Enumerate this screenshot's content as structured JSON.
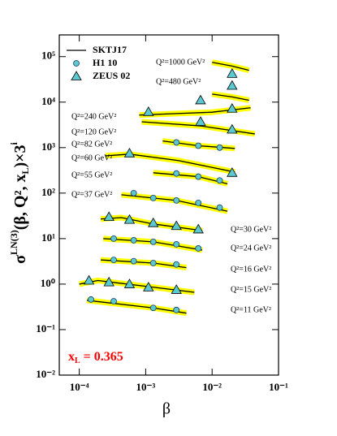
{
  "chart_data": {
    "type": "scatter",
    "xscale": "log",
    "yscale": "log",
    "xlabel": "β",
    "ylabel_parts": [
      "σ",
      "LN(3)",
      "(β, Q², x",
      "L",
      ")×3",
      "i"
    ],
    "annotation_parts": [
      "x",
      "L",
      " = 0.365"
    ],
    "annotation_color": "#ff0000",
    "xlim": [
      5e-05,
      0.1
    ],
    "ylim": [
      0.01,
      300000
    ],
    "xticks": [
      {
        "value": 0.0001,
        "label": "10⁻⁴"
      },
      {
        "value": 0.001,
        "label": "10⁻³"
      },
      {
        "value": 0.01,
        "label": "10⁻²"
      },
      {
        "value": 0.1,
        "label": "10⁻¹"
      }
    ],
    "yticks": [
      {
        "value": 0.01,
        "label": "10⁻²"
      },
      {
        "value": 0.1,
        "label": "10⁻¹"
      },
      {
        "value": 1,
        "label": "10⁰"
      },
      {
        "value": 10,
        "label": "10¹"
      },
      {
        "value": 100,
        "label": "10²"
      },
      {
        "value": 1000,
        "label": "10³"
      },
      {
        "value": 10000,
        "label": "10⁴"
      },
      {
        "value": 100000,
        "label": "10⁵"
      }
    ],
    "series": [
      {
        "name": "SKTJ17",
        "color": "#000000",
        "band_color": "#ffff00",
        "marker": "line"
      },
      {
        "name": "H1 10",
        "color": "#5cc8cf",
        "marker": "circle"
      },
      {
        "name": "ZEUS 02",
        "color": "#5cc8cf",
        "marker": "triangle"
      }
    ],
    "bins": [
      {
        "label": "Q²=1000 GeV²",
        "curve_x": [
          0.01,
          0.02,
          0.036
        ],
        "curve_y": [
          75000,
          62000,
          50000
        ],
        "zeus_x": [
          0.02
        ],
        "zeus_y": [
          42000
        ]
      },
      {
        "label": "Q²=480 GeV²",
        "curve_x": [
          0.01,
          0.02,
          0.036
        ],
        "curve_y": [
          15000,
          13000,
          11000
        ],
        "zeus_x": [
          0.02
        ],
        "zeus_y": [
          23000
        ]
      },
      {
        "label": "Q²=240 GeV²",
        "curve_x": [
          0.0008,
          0.0029,
          0.01,
          0.038
        ],
        "curve_y": [
          5200,
          5600,
          6000,
          7500
        ],
        "zeus_x": [
          0.0011,
          0.0067,
          0.02
        ],
        "zeus_y": [
          6100,
          11000,
          7200
        ]
      },
      {
        "label": "Q²=120 GeV²",
        "curve_x": [
          0.00087,
          0.0067,
          0.044
        ],
        "curve_y": [
          3700,
          3000,
          2000
        ],
        "zeus_x": [
          0.0067,
          0.02
        ],
        "zeus_y": [
          3700,
          2500
        ]
      },
      {
        "label": "Q²=82 GeV²",
        "curve_x": [
          0.0018,
          0.0062,
          0.022
        ],
        "curve_y": [
          1400,
          1100,
          960
        ],
        "h1_x": [
          0.0029,
          0.0062,
          0.013
        ],
        "h1_y": [
          1300,
          1100,
          1000
        ]
      },
      {
        "label": "Q²=60 GeV²",
        "curve_x": [
          0.00025,
          0.00057,
          0.0031,
          0.022
        ],
        "curve_y": [
          660,
          720,
          520,
          290
        ],
        "zeus_x": [
          0.00057,
          0.02
        ],
        "zeus_y": [
          750,
          280
        ]
      },
      {
        "label": "Q²=55 GeV²",
        "curve_x": [
          0.0013,
          0.0062,
          0.017
        ],
        "curve_y": [
          280,
          230,
          160
        ],
        "h1_x": [
          0.0029,
          0.0062,
          0.013
        ],
        "h1_y": [
          270,
          230,
          190
        ]
      },
      {
        "label": "Q²=37 GeV²",
        "curve_x": [
          0.00043,
          0.0029,
          0.017
        ],
        "curve_y": [
          92,
          69,
          40
        ],
        "h1_x": [
          0.00066,
          0.0013,
          0.0029,
          0.0062,
          0.013
        ],
        "h1_y": [
          100,
          78,
          69,
          61,
          48
        ]
      },
      {
        "label": "Q²=30 GeV²",
        "curve_x": [
          0.00021,
          0.00043,
          0.0013,
          0.0071
        ],
        "curve_y": [
          27,
          29,
          21,
          15
        ],
        "zeus_x": [
          0.00028,
          0.00057,
          0.0013,
          0.0029,
          0.0062
        ],
        "zeus_y": [
          30,
          26,
          22,
          19,
          16
        ]
      },
      {
        "label": "Q²=24 GeV²",
        "curve_x": [
          0.00023,
          0.0013,
          0.0071
        ],
        "curve_y": [
          10,
          8.5,
          5.6
        ],
        "h1_x": [
          0.00033,
          0.00066,
          0.0013,
          0.0029,
          0.0062
        ],
        "h1_y": [
          10,
          9.2,
          8.5,
          7.5,
          6.1
        ]
      },
      {
        "label": "Q²=16 GeV²",
        "curve_x": [
          0.00021,
          0.0013,
          0.0041
        ],
        "curve_y": [
          3.4,
          2.9,
          2.3
        ],
        "h1_x": [
          0.00033,
          0.00066,
          0.0013,
          0.0029
        ],
        "h1_y": [
          3.4,
          3.2,
          2.9,
          2.7
        ]
      },
      {
        "label": "Q²=15 GeV²",
        "curve_x": [
          0.0001,
          0.00019,
          0.0011,
          0.0054
        ],
        "curve_y": [
          1.0,
          1.2,
          0.88,
          0.66
        ],
        "zeus_x": [
          0.00014,
          0.00028,
          0.00057,
          0.0011,
          0.0029
        ],
        "zeus_y": [
          1.2,
          1.1,
          1.0,
          0.85,
          0.75
        ]
      },
      {
        "label": "Q²=11 GeV²",
        "curve_x": [
          0.00013,
          0.0013,
          0.0041
        ],
        "curve_y": [
          0.44,
          0.3,
          0.23
        ],
        "h1_x": [
          0.00015,
          0.00033,
          0.0013,
          0.0029
        ],
        "h1_y": [
          0.46,
          0.42,
          0.3,
          0.27
        ]
      }
    ]
  }
}
